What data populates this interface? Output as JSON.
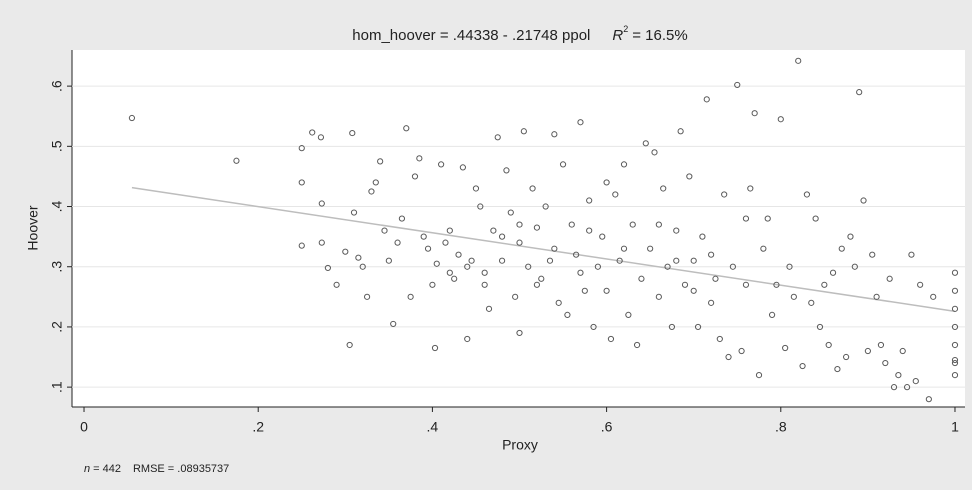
{
  "chart_data": {
    "type": "scatter",
    "title": {
      "equation": "hom_hoover = .44338 - .21748 ppol",
      "r2_symbol": "R",
      "r2_superscript": "2",
      "r2_value": "= 16.5%"
    },
    "x_label": "Proxy",
    "y_label": "Hoover",
    "footnote": {
      "n_symbol": "n",
      "n_value": "= 442",
      "rmse": "RMSE = .08935737"
    },
    "xlim": [
      -0.0138,
      1.0115
    ],
    "ylim": [
      0.067,
      0.66
    ],
    "xticks": [
      0,
      {
        "value": 0.2,
        "label": ".2"
      },
      {
        "value": 0.4,
        "label": ".4"
      },
      {
        "value": 0.6,
        "label": ".6"
      },
      {
        "value": 0.8,
        "label": ".8"
      },
      1
    ],
    "yticks": [
      {
        "value": 0.1,
        "label": ".1"
      },
      {
        "value": 0.2,
        "label": ".2"
      },
      {
        "value": 0.3,
        "label": ".3"
      },
      {
        "value": 0.4,
        "label": ".4"
      },
      {
        "value": 0.5,
        "label": ".5"
      },
      {
        "value": 0.6,
        "label": ".6"
      }
    ],
    "grid": true,
    "series": [
      {
        "color": "#5a5a5a",
        "x": [
          0.055,
          0.175,
          0.25,
          0.25,
          0.25,
          0.262,
          0.272,
          0.273,
          0.273,
          0.28,
          0.29,
          0.3,
          0.305,
          0.308,
          0.31,
          0.315,
          0.32,
          0.325,
          0.33,
          0.335,
          0.34,
          0.345,
          0.35,
          0.355,
          0.36,
          0.365,
          0.37,
          0.375,
          0.38,
          0.385,
          0.39,
          0.395,
          0.4,
          0.403,
          0.405,
          0.41,
          0.415,
          0.42,
          0.425,
          0.43,
          0.435,
          0.44,
          0.445,
          0.45,
          0.455,
          0.46,
          0.465,
          0.47,
          0.475,
          0.48,
          0.485,
          0.49,
          0.495,
          0.5,
          0.5,
          0.505,
          0.51,
          0.515,
          0.52,
          0.525,
          0.53,
          0.535,
          0.54,
          0.545,
          0.55,
          0.555,
          0.56,
          0.565,
          0.57,
          0.575,
          0.58,
          0.585,
          0.59,
          0.595,
          0.6,
          0.605,
          0.61,
          0.615,
          0.62,
          0.625,
          0.63,
          0.635,
          0.64,
          0.645,
          0.65,
          0.655,
          0.66,
          0.665,
          0.67,
          0.675,
          0.68,
          0.685,
          0.69,
          0.695,
          0.7,
          0.705,
          0.71,
          0.715,
          0.72,
          0.725,
          0.73,
          0.735,
          0.74,
          0.745,
          0.75,
          0.755,
          0.76,
          0.765,
          0.77,
          0.775,
          0.78,
          0.785,
          0.79,
          0.795,
          0.8,
          0.805,
          0.81,
          0.815,
          0.82,
          0.825,
          0.83,
          0.835,
          0.84,
          0.845,
          0.85,
          0.855,
          0.86,
          0.865,
          0.87,
          0.875,
          0.88,
          0.885,
          0.89,
          0.895,
          0.9,
          0.905,
          0.91,
          0.915,
          0.92,
          0.925,
          0.93,
          0.935,
          0.94,
          0.945,
          0.95,
          0.955,
          0.96,
          0.97,
          0.975,
          1,
          1,
          1,
          1,
          1,
          1,
          1,
          1,
          0.6,
          0.62,
          0.57,
          0.52,
          0.48,
          0.44,
          0.66,
          0.68,
          0.72,
          0.76,
          0.7,
          0.58,
          0.54,
          0.5,
          0.46,
          0.42
        ],
        "y": [
          0.547,
          0.476,
          0.44,
          0.497,
          0.335,
          0.523,
          0.515,
          0.405,
          0.34,
          0.298,
          0.27,
          0.325,
          0.17,
          0.522,
          0.39,
          0.315,
          0.3,
          0.25,
          0.425,
          0.44,
          0.475,
          0.36,
          0.31,
          0.205,
          0.34,
          0.38,
          0.53,
          0.25,
          0.45,
          0.48,
          0.35,
          0.33,
          0.27,
          0.165,
          0.305,
          0.47,
          0.34,
          0.36,
          0.28,
          0.32,
          0.465,
          0.18,
          0.31,
          0.43,
          0.4,
          0.29,
          0.23,
          0.36,
          0.515,
          0.31,
          0.46,
          0.39,
          0.25,
          0.19,
          0.34,
          0.525,
          0.3,
          0.43,
          0.365,
          0.28,
          0.4,
          0.31,
          0.52,
          0.24,
          0.47,
          0.22,
          0.37,
          0.32,
          0.54,
          0.26,
          0.41,
          0.2,
          0.3,
          0.35,
          0.26,
          0.18,
          0.42,
          0.31,
          0.47,
          0.22,
          0.37,
          0.17,
          0.28,
          0.505,
          0.33,
          0.49,
          0.25,
          0.43,
          0.3,
          0.2,
          0.36,
          0.525,
          0.27,
          0.45,
          0.31,
          0.2,
          0.35,
          0.578,
          0.24,
          0.28,
          0.18,
          0.42,
          0.15,
          0.3,
          0.602,
          0.16,
          0.27,
          0.43,
          0.555,
          0.12,
          0.33,
          0.38,
          0.22,
          0.27,
          0.545,
          0.165,
          0.3,
          0.25,
          0.642,
          0.135,
          0.42,
          0.24,
          0.38,
          0.2,
          0.27,
          0.17,
          0.29,
          0.13,
          0.33,
          0.15,
          0.35,
          0.3,
          0.59,
          0.41,
          0.16,
          0.32,
          0.25,
          0.17,
          0.14,
          0.28,
          0.1,
          0.12,
          0.16,
          0.1,
          0.32,
          0.11,
          0.27,
          0.08,
          0.25,
          0.29,
          0.26,
          0.23,
          0.2,
          0.17,
          0.145,
          0.14,
          0.12,
          0.44,
          0.33,
          0.29,
          0.27,
          0.35,
          0.3,
          0.37,
          0.31,
          0.32,
          0.38,
          0.26,
          0.36,
          0.33,
          0.37,
          0.27,
          0.29
        ]
      }
    ],
    "fit_line": {
      "color": "#bdbdbd",
      "x": [
        0.055,
        1
      ],
      "y": [
        0.4314,
        0.2259
      ]
    }
  }
}
